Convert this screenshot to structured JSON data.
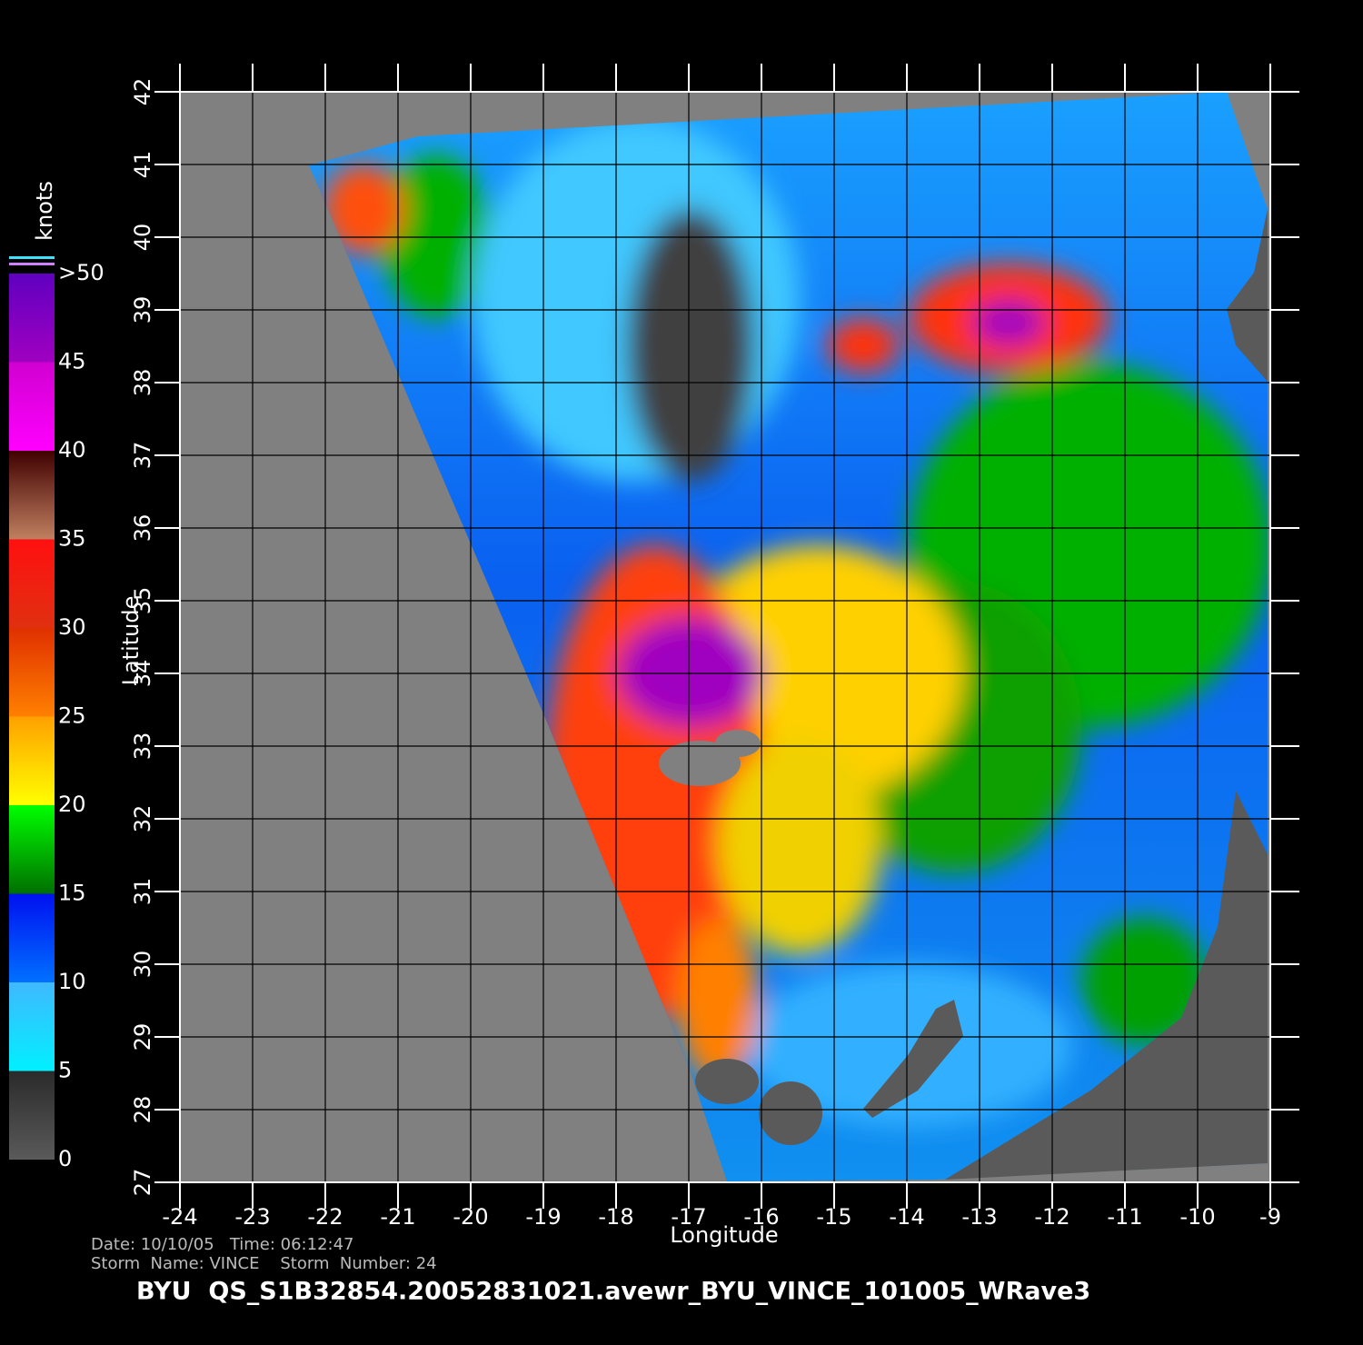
{
  "map": {
    "xlabel": "Longitude",
    "ylabel": "Latitude",
    "xlim": [
      -24,
      -9
    ],
    "ylim": [
      27,
      42
    ],
    "xticks": [
      -24,
      -23,
      -22,
      -21,
      -20,
      -19,
      -18,
      -17,
      -16,
      -15,
      -14,
      -13,
      -12,
      -11,
      -10,
      -9
    ],
    "yticks": [
      27,
      28,
      29,
      30,
      31,
      32,
      33,
      34,
      35,
      36,
      37,
      38,
      39,
      40,
      41,
      42
    ]
  },
  "colorbar": {
    "title": "knots",
    "lim": [
      0,
      50
    ],
    "ticks": [
      0,
      5,
      10,
      15,
      20,
      25,
      30,
      35,
      40,
      45,
      {
        "value": 50,
        "label": ">50"
      }
    ],
    "colors": [
      [
        "#5a5a5a",
        "#2a2a2a"
      ],
      [
        "#00f0ff",
        "#40b8ff"
      ],
      [
        "#0070ff",
        "#0010f0"
      ],
      [
        "#007000",
        "#00ff00"
      ],
      [
        "#ffff00",
        "#ffa000"
      ],
      [
        "#ff8000",
        "#e03000"
      ],
      [
        "#e03010",
        "#ff1010"
      ],
      [
        "#c08060",
        "#400000"
      ],
      [
        "#ff00ff",
        "#d000d0"
      ],
      [
        "#a000c0",
        "#6000c0"
      ]
    ]
  },
  "footer": {
    "date_line": "Date: 10/10/05   Time: 06:12:47",
    "storm_line": "Storm  Name: VINCE    Storm  Number: 24",
    "file_line": "BYU  QS_S1B32854.20052831021.avewr_BYU_VINCE_101005_WRave3"
  }
}
